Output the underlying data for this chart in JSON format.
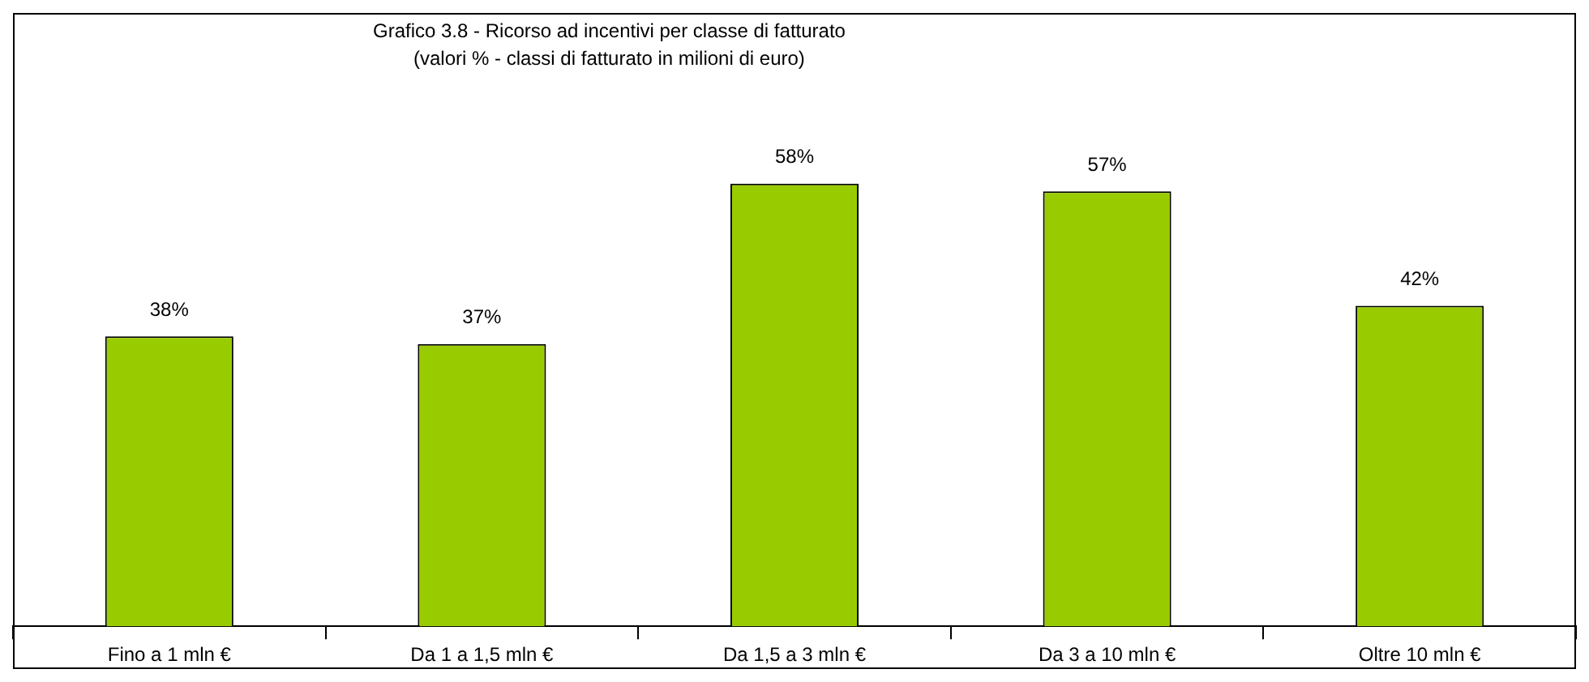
{
  "chart_data": {
    "type": "bar",
    "title": "Grafico 3.8 - Ricorso ad incentivi per classe di fatturato",
    "subtitle": "(valori % - classi di fatturato in milioni di euro)",
    "categories": [
      "Fino a 1 mln €",
      "Da 1 a 1,5 mln €",
      "Da 1,5 a 3 mln €",
      "Da 3 a 10 mln €",
      "Oltre 10 mln €"
    ],
    "values": [
      38,
      37,
      58,
      57,
      42
    ],
    "value_labels": [
      "38%",
      "37%",
      "58%",
      "57%",
      "42%"
    ],
    "color": "#99cc00",
    "grid": false,
    "legend": false
  }
}
